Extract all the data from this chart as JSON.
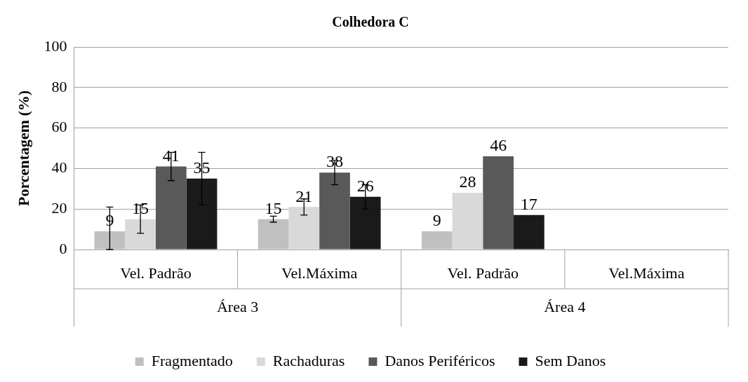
{
  "chart_data": {
    "type": "bar",
    "title": "Colhedora C",
    "ylabel": "Porcentagem (%)",
    "categories": [
      "Vel. Padrão",
      "Vel.Máxima",
      "Vel. Padrão",
      "Vel.Máxima"
    ],
    "series": [
      {
        "name": "Fragmentado",
        "color": "#c0c0c0",
        "values": [
          9,
          15,
          9,
          null
        ],
        "errors": [
          [
            0,
            21
          ],
          1.5,
          null,
          null
        ]
      },
      {
        "name": "Rachaduras",
        "color": "#d9d9d9",
        "values": [
          15,
          21,
          28,
          null
        ],
        "errors": [
          7,
          4,
          null,
          null
        ]
      },
      {
        "name": "Danos Periféricos",
        "color": "#595959",
        "values": [
          41,
          38,
          46,
          null
        ],
        "errors": [
          7,
          6,
          null,
          null
        ]
      },
      {
        "name": "Sem Danos",
        "color": "#1a1a1a",
        "values": [
          35,
          26,
          17,
          null
        ],
        "errors": [
          13,
          6,
          null,
          null
        ]
      }
    ],
    "annotations": [
      "Área 3",
      "Área 4"
    ],
    "ylim": [
      0,
      100
    ],
    "yticks": [
      0,
      20,
      40,
      60,
      80,
      100
    ],
    "grid": "y",
    "legend": "bottom",
    "data_labels": true
  }
}
